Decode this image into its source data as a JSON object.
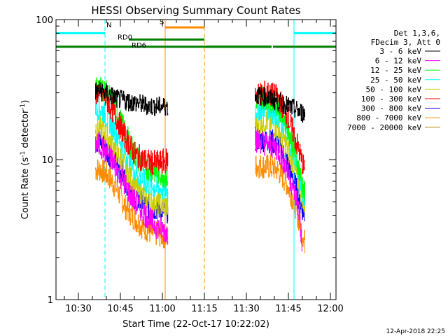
{
  "chart_data": {
    "type": "line",
    "title": "HESSI Observing Summary Count Rates",
    "xlabel": "Start Time (22-Oct-17 10:22:02)",
    "ylabel": "Count Rate (s",
    "ylabel_sup": "-1",
    "ylabel_rest": " detector",
    "ylabel_sup2": "-1",
    "ylabel_close": ")",
    "y_scale": "log",
    "ylim": [
      1,
      100
    ],
    "y_ticks": [
      {
        "value": 1,
        "label": "1"
      },
      {
        "value": 10,
        "label": "10"
      },
      {
        "value": 100,
        "label": "100"
      }
    ],
    "xlim_min": [
      22,
      122
    ],
    "x_ticks": [
      {
        "min": 30,
        "label": "10:30"
      },
      {
        "min": 45,
        "label": "10:45"
      },
      {
        "min": 60,
        "label": "11:00"
      },
      {
        "min": 75,
        "label": "11:15"
      },
      {
        "min": 90,
        "label": "11:30"
      },
      {
        "min": 105,
        "label": "11:45"
      },
      {
        "min": 120,
        "label": "12:00"
      }
    ],
    "grid": false,
    "legend_position": "right",
    "legend_header": [
      "Det 1,3,6,",
      "FDecim 3, Att 0"
    ],
    "series": [
      {
        "name": "3 - 6 keV",
        "color": "#000000",
        "seg1": [
          [
            36,
            31
          ],
          [
            40,
            30
          ],
          [
            44,
            27
          ],
          [
            48,
            26
          ],
          [
            52,
            25
          ],
          [
            56,
            24
          ],
          [
            60,
            24
          ],
          [
            62,
            24
          ]
        ],
        "seg2": [
          [
            93,
            29
          ],
          [
            97,
            28
          ],
          [
            101,
            26
          ],
          [
            105,
            24
          ],
          [
            109,
            22
          ],
          [
            111,
            21
          ]
        ]
      },
      {
        "name": "6 - 12 keV",
        "color": "#ff00ff",
        "seg1": [
          [
            36,
            13
          ],
          [
            38,
            12.5
          ],
          [
            42,
            10
          ],
          [
            46,
            7
          ],
          [
            50,
            5
          ],
          [
            54,
            4
          ],
          [
            58,
            3.3
          ],
          [
            62,
            3
          ]
        ],
        "seg2": [
          [
            93,
            14
          ],
          [
            97,
            13
          ],
          [
            101,
            12
          ],
          [
            104,
            9
          ],
          [
            107,
            6
          ],
          [
            109,
            4
          ],
          [
            110,
            2
          ]
        ]
      },
      {
        "name": "12 - 25 keV",
        "color": "#00ff00",
        "seg1": [
          [
            36,
            32
          ],
          [
            38,
            33
          ],
          [
            41,
            28
          ],
          [
            44,
            21
          ],
          [
            47,
            15
          ],
          [
            50,
            11
          ],
          [
            53,
            9
          ],
          [
            56,
            8.5
          ],
          [
            59,
            8
          ],
          [
            62,
            7.5
          ]
        ],
        "seg2": [
          [
            93,
            27
          ],
          [
            97,
            28
          ],
          [
            101,
            25
          ],
          [
            104,
            19
          ],
          [
            107,
            12
          ],
          [
            109,
            8
          ],
          [
            111,
            5.5
          ]
        ]
      },
      {
        "name": "25 - 50 keV",
        "color": "#00ffff",
        "seg1": [
          [
            36,
            24
          ],
          [
            38,
            23
          ],
          [
            41,
            19
          ],
          [
            44,
            15
          ],
          [
            47,
            11
          ],
          [
            50,
            8.5
          ],
          [
            53,
            7
          ],
          [
            56,
            6.5
          ],
          [
            59,
            6.2
          ],
          [
            62,
            6
          ]
        ],
        "seg2": [
          [
            93,
            23
          ],
          [
            97,
            24
          ],
          [
            101,
            21
          ],
          [
            104,
            16
          ],
          [
            107,
            11
          ],
          [
            109,
            7.5
          ],
          [
            111,
            5
          ]
        ]
      },
      {
        "name": "50 - 100 keV",
        "color": "#cccc00",
        "seg1": [
          [
            36,
            17
          ],
          [
            38,
            16.5
          ],
          [
            41,
            14
          ],
          [
            44,
            11
          ],
          [
            47,
            8.5
          ],
          [
            50,
            6.5
          ],
          [
            53,
            5.5
          ],
          [
            56,
            5
          ],
          [
            59,
            4.8
          ],
          [
            62,
            4.6
          ]
        ],
        "seg2": [
          [
            93,
            18
          ],
          [
            97,
            19
          ],
          [
            101,
            17
          ],
          [
            104,
            13
          ],
          [
            107,
            9
          ],
          [
            109,
            6.5
          ],
          [
            111,
            4.5
          ]
        ]
      },
      {
        "name": "100 - 300 keV",
        "color": "#ff0000",
        "seg1": [
          [
            36,
            30
          ],
          [
            38,
            30
          ],
          [
            41,
            25
          ],
          [
            44,
            19
          ],
          [
            47,
            14
          ],
          [
            50,
            11
          ],
          [
            53,
            10
          ],
          [
            56,
            9.5
          ],
          [
            59,
            9.5
          ],
          [
            62,
            10
          ]
        ],
        "seg2": [
          [
            93,
            29
          ],
          [
            97,
            30
          ],
          [
            101,
            28
          ],
          [
            104,
            22
          ],
          [
            107,
            15
          ],
          [
            109,
            11
          ],
          [
            111,
            8
          ]
        ]
      },
      {
        "name": "300 - 800 keV",
        "color": "#0000ff",
        "seg1": [
          [
            36,
            13.5
          ],
          [
            38,
            13.5
          ],
          [
            41,
            11
          ],
          [
            44,
            9
          ],
          [
            47,
            7
          ],
          [
            50,
            5.5
          ],
          [
            53,
            4.8
          ],
          [
            56,
            4.5
          ],
          [
            59,
            4.5
          ],
          [
            62,
            4.3
          ]
        ],
        "seg2": [
          [
            93,
            14
          ],
          [
            97,
            14
          ],
          [
            101,
            13
          ],
          [
            104,
            10
          ],
          [
            107,
            7
          ],
          [
            109,
            5
          ],
          [
            111,
            4
          ]
        ]
      },
      {
        "name": "800 - 7000 keV",
        "color": "#ff8c00",
        "seg1": [
          [
            36,
            8.5
          ],
          [
            38,
            8.5
          ],
          [
            41,
            7.5
          ],
          [
            44,
            6
          ],
          [
            47,
            4.5
          ],
          [
            50,
            3.8
          ],
          [
            53,
            3.3
          ],
          [
            56,
            3
          ],
          [
            59,
            2.9
          ],
          [
            62,
            2.8
          ]
        ],
        "seg2": [
          [
            93,
            9
          ],
          [
            97,
            9
          ],
          [
            101,
            8.5
          ],
          [
            104,
            7
          ],
          [
            107,
            5
          ],
          [
            109,
            3.5
          ],
          [
            111,
            2.5
          ]
        ]
      },
      {
        "name": "7000 - 20000 keV",
        "color": "#b8860b",
        "seg1": [],
        "seg2": []
      }
    ],
    "annotations": {
      "N": {
        "label": "N",
        "color": "#00ffff",
        "bar": [
          22,
          39.5
        ],
        "level": 80,
        "label_at": 40
      },
      "N_bar2": {
        "bar": [
          107,
          122
        ],
        "level": 80
      },
      "SAA": {
        "label": "S",
        "color": "#ff8c00",
        "bar": [
          61,
          75
        ],
        "level": 88,
        "label_at": 59
      },
      "RD0": {
        "label": "RD0",
        "color": "#008000",
        "bar": [
          48,
          75
        ],
        "level": 72,
        "label_at": 44
      },
      "RD6": {
        "label": "RD6",
        "color": "#008000",
        "level": 64,
        "label_at": 49,
        "bars": [
          [
            22,
            99
          ],
          [
            75.5,
            99
          ],
          [
            99.5,
            122
          ]
        ]
      },
      "cyan_solid": [
        22,
        107
      ],
      "cyan_dashed": [
        39.5,
        122
      ],
      "orange_solid": [
        61
      ],
      "orange_dashed": [
        75
      ]
    },
    "footer_date": "12-Apr-2018 22:25"
  }
}
